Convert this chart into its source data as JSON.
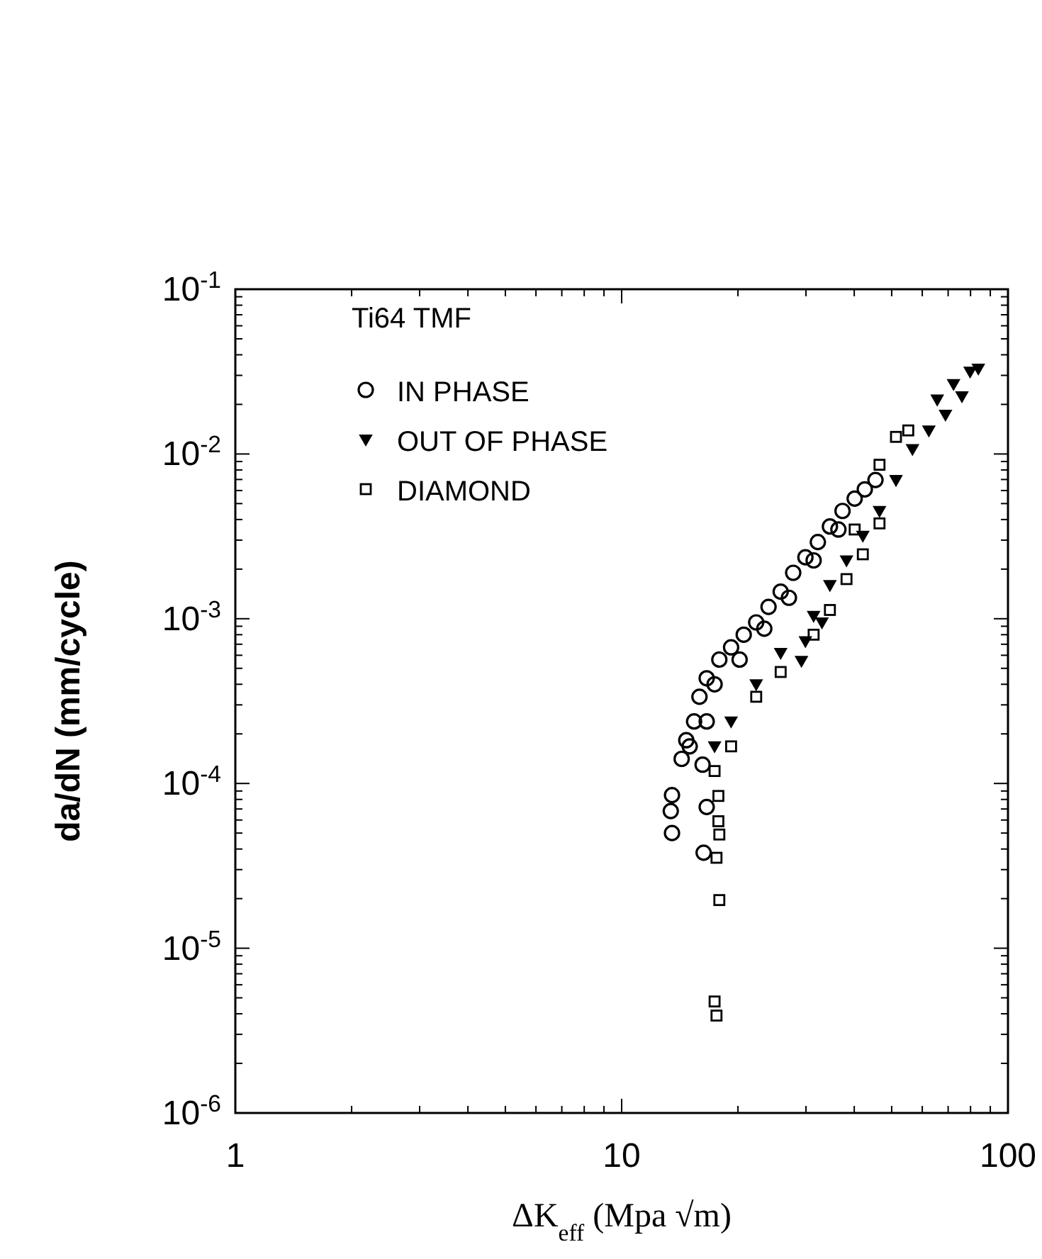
{
  "chart_data": {
    "type": "scatter",
    "xlabel": "ΔK$_{eff}$ (Mpa √m)",
    "ylabel": "da/dN (mm/cycle)",
    "legend_title": "Ti64 TMF",
    "legend": "top left",
    "log": "xy",
    "grid": false,
    "xlim": [
      1,
      100
    ],
    "ylim": [
      1e-06,
      0.1
    ],
    "xticks": [
      1,
      {
        "value": 2,
        "label": null
      },
      {
        "value": 3,
        "label": null
      },
      {
        "value": 4,
        "label": null
      },
      {
        "value": 5,
        "label": null
      },
      {
        "value": 6,
        "label": null
      },
      {
        "value": 7,
        "label": null
      },
      {
        "value": 8,
        "label": null
      },
      {
        "value": 9,
        "label": null
      },
      10,
      {
        "value": 20,
        "label": null
      },
      {
        "value": 30,
        "label": null
      },
      {
        "value": 40,
        "label": null
      },
      {
        "value": 50,
        "label": null
      },
      {
        "value": 60,
        "label": null
      },
      {
        "value": 70,
        "label": null
      },
      {
        "value": 80,
        "label": null
      },
      {
        "value": 90,
        "label": null
      },
      100
    ],
    "yticks": [
      {
        "value": 1e-06,
        "label": "10$^{-6}$"
      },
      {
        "value": 1e-05,
        "label": "10$^{-5}$"
      },
      {
        "value": 0.0001,
        "label": "10$^{-4}$"
      },
      {
        "value": 0.001,
        "label": "10$^{-3}$"
      },
      {
        "value": 0.01,
        "label": "10$^{-2}$"
      },
      {
        "value": 0.1,
        "label": "10$^{-1}$"
      }
    ],
    "series": [
      {
        "name": "IN PHASE",
        "color": "#000000",
        "marker": "circle",
        "x": [
          13.5,
          13.4,
          13.5,
          16.6,
          16.3,
          14.3,
          14.7,
          15.4,
          15.9,
          16.6,
          17.9,
          19.2,
          20.7,
          22.3,
          24.0,
          25.8,
          27.8,
          29.9,
          32.2,
          34.6,
          37.3,
          40.1,
          42.6,
          45.4,
          17.4,
          20.2,
          23.4,
          27.1,
          31.4,
          36.4,
          15.0,
          16.6,
          16.2
        ],
        "values": [
          5e-05,
          6.8e-05,
          8.5e-05,
          7.2e-05,
          3.8e-05,
          0.000141,
          0.000183,
          0.000238,
          0.000336,
          0.000435,
          0.000565,
          0.00067,
          0.0008,
          0.00095,
          0.00118,
          0.00146,
          0.0019,
          0.00236,
          0.00292,
          0.00363,
          0.00451,
          0.00536,
          0.0061,
          0.00695,
          0.0004,
          0.000565,
          0.00087,
          0.00134,
          0.00226,
          0.00348,
          0.000168,
          0.000238,
          0.00013
        ]
      },
      {
        "name": "OUT OF PHASE",
        "color": "#000000",
        "marker": "triangle",
        "x": [
          29.2,
          29.9,
          31.4,
          34.6,
          38.2,
          42.1,
          46.5,
          51.3,
          56.6,
          62.4,
          68.9,
          76.0,
          83.8,
          79.8,
          72.3,
          65.6,
          17.4,
          19.2,
          22.3,
          25.8,
          33.0
        ],
        "values": [
          0.000555,
          0.00073,
          0.00104,
          0.0016,
          0.00226,
          0.00319,
          0.00451,
          0.00695,
          0.0107,
          0.0139,
          0.0173,
          0.0224,
          0.033,
          0.0316,
          0.0266,
          0.0214,
          0.000168,
          0.000238,
          0.0004,
          0.00062,
          0.00095
        ]
      },
      {
        "name": "DIAMOND",
        "color": "#000000",
        "marker": "square",
        "x": [
          17.8,
          17.8,
          17.9,
          17.6,
          17.9,
          17.4,
          17.6,
          46.5,
          51.3,
          55.2,
          19.2,
          22.3,
          25.8,
          31.4,
          34.6,
          38.2,
          42.1,
          46.5,
          40.1,
          17.4
        ],
        "values": [
          8.4e-05,
          5.9e-05,
          4.9e-05,
          3.54e-05,
          1.96e-05,
          4.75e-06,
          3.9e-06,
          0.0086,
          0.0127,
          0.0139,
          0.000168,
          0.000336,
          0.000475,
          0.0008,
          0.00113,
          0.00174,
          0.00246,
          0.00379,
          0.00348,
          0.000119
        ]
      }
    ]
  }
}
